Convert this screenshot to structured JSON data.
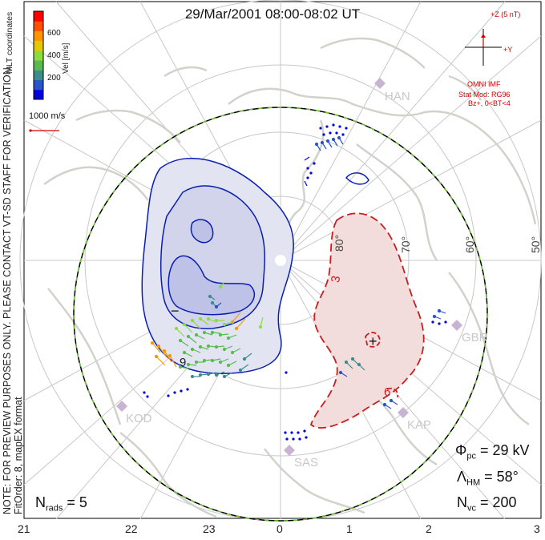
{
  "title": "29/Mar/2001 08:00-08:02 UT",
  "note_line1": "NOTE: FOR PREVIEW PURPOSES ONLY. PLEASE CONTACT VT-SD STAFF FOR VERIFICATION.",
  "note_line2": "FitOrder: 8, mapEX format",
  "coord_label": "MLT coordinates",
  "colorbar": {
    "label": "Vel [m/s]",
    "ticks": [
      "600",
      "400",
      "200"
    ],
    "colors": [
      "#0000e0",
      "#2a55c8",
      "#3c8c8c",
      "#5aba50",
      "#8cdc3c",
      "#e6c800",
      "#ff9600",
      "#ff5000",
      "#ff0000"
    ]
  },
  "scale_vector": "1000 m/s",
  "imf": {
    "plus_z": "+Z (5 nT)",
    "plus_y": "+Y",
    "source": "OMNI IMF",
    "model_line1": "Stat Mod: RG96",
    "model_line2": "Bz+, 0<BT<4"
  },
  "stations": [
    "HAN",
    "GBR",
    "KAP",
    "SAS",
    "KOD"
  ],
  "latitude_labels": [
    "80°",
    "70°",
    "60°",
    "50°"
  ],
  "contour_labels": {
    "minus": "−",
    "plus": "+",
    "c3": "3",
    "c6": "6",
    "c9": "9"
  },
  "mlt_labels": [
    "21",
    "22",
    "23",
    "0",
    "1",
    "2",
    "3"
  ],
  "stats": {
    "phi_sym": "Φ",
    "phi_sub": "pc",
    "phi_val": " = 29 kV",
    "lambda_sym": "Λ",
    "lambda_sub": "HM",
    "lambda_val": " = 58°",
    "nvc_sym": "N",
    "nvc_sub": "vc",
    "nvc_val": " = 200",
    "nrads_sym": "N",
    "nrads_sub": "rads",
    "nrads_val": " = 5"
  },
  "colors": {
    "negative_cell": "#0a1eb4",
    "positive_cell": "#c81e1e",
    "heppner_boundary": "#6ec832",
    "grid": "#c8c8c8",
    "land": "#d2d2cc"
  }
}
